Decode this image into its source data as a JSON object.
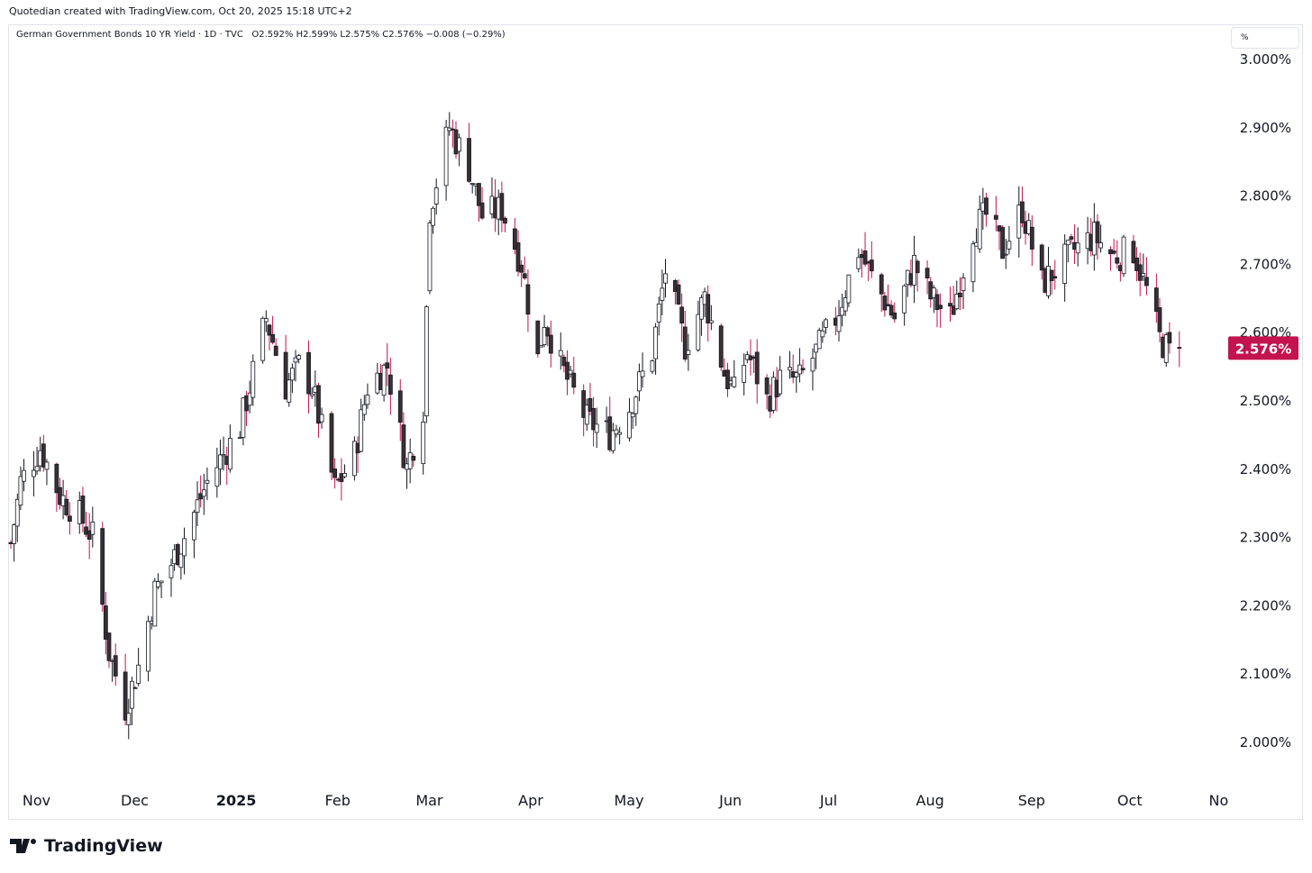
{
  "credit": "Quotedian created with TradingView.com, Oct 20, 2025 15:18 UTC+2",
  "legend": {
    "symbol": "German Government Bonds 10 YR Yield · 1D · TVC",
    "ohlc": "O2.592%  H2.599%  L2.575%  C2.576%  −0.008 (−0.29%)"
  },
  "unit_label": "%",
  "price_tag": "2.576%",
  "brand": "TradingView",
  "colors": {
    "up": "#131722",
    "up_body": "#ffffff",
    "down_body": "#3a2f33",
    "down_wick": "#c3144f",
    "tag": "#c3144f"
  },
  "chart_data": {
    "type": "candlestick",
    "title": "German Government Bonds 10 YR Yield",
    "ylabel": "%",
    "ylim": [
      1.98,
      3.01
    ],
    "y_ticks": [
      "2.000%",
      "2.100%",
      "2.200%",
      "2.300%",
      "2.400%",
      "2.500%",
      "2.600%",
      "2.700%",
      "2.800%",
      "2.900%",
      "3.000%"
    ],
    "y_tick_values": [
      2.0,
      2.1,
      2.2,
      2.3,
      2.4,
      2.5,
      2.6,
      2.7,
      2.8,
      2.9,
      3.0
    ],
    "x_ticks": [
      {
        "label": "Nov",
        "date": "2024-11-01"
      },
      {
        "label": "Dec",
        "date": "2024-12-01"
      },
      {
        "label": "2025",
        "date": "2025-01-01",
        "bold": true
      },
      {
        "label": "Feb",
        "date": "2025-02-01"
      },
      {
        "label": "Mar",
        "date": "2025-03-01"
      },
      {
        "label": "Apr",
        "date": "2025-04-01"
      },
      {
        "label": "May",
        "date": "2025-05-01"
      },
      {
        "label": "Jun",
        "date": "2025-06-01"
      },
      {
        "label": "Jul",
        "date": "2025-07-01"
      },
      {
        "label": "Aug",
        "date": "2025-08-01"
      },
      {
        "label": "Sep",
        "date": "2025-09-01"
      },
      {
        "label": "Oct",
        "date": "2025-10-01"
      },
      {
        "label": "No",
        "date": "2025-11-01"
      }
    ],
    "x_range": [
      "2024-10-28",
      "2025-11-02"
    ],
    "last_value": 2.576,
    "close_series": [
      {
        "date": "2024-10-28",
        "close": 2.29
      },
      {
        "date": "2024-10-31",
        "close": 2.38
      },
      {
        "date": "2024-11-06",
        "close": 2.43
      },
      {
        "date": "2024-11-12",
        "close": 2.36
      },
      {
        "date": "2024-11-18",
        "close": 2.33
      },
      {
        "date": "2024-11-22",
        "close": 2.3
      },
      {
        "date": "2024-11-27",
        "close": 2.13
      },
      {
        "date": "2024-12-02",
        "close": 2.05
      },
      {
        "date": "2024-12-06",
        "close": 2.11
      },
      {
        "date": "2024-12-11",
        "close": 2.22
      },
      {
        "date": "2024-12-16",
        "close": 2.26
      },
      {
        "date": "2024-12-20",
        "close": 2.3
      },
      {
        "date": "2024-12-27",
        "close": 2.38
      },
      {
        "date": "2025-01-06",
        "close": 2.46
      },
      {
        "date": "2025-01-14",
        "close": 2.62
      },
      {
        "date": "2025-01-20",
        "close": 2.52
      },
      {
        "date": "2025-01-24",
        "close": 2.55
      },
      {
        "date": "2025-01-28",
        "close": 2.52
      },
      {
        "date": "2025-02-04",
        "close": 2.37
      },
      {
        "date": "2025-02-10",
        "close": 2.42
      },
      {
        "date": "2025-02-14",
        "close": 2.52
      },
      {
        "date": "2025-02-20",
        "close": 2.55
      },
      {
        "date": "2025-02-26",
        "close": 2.4
      },
      {
        "date": "2025-03-03",
        "close": 2.49
      },
      {
        "date": "2025-03-05",
        "close": 2.78
      },
      {
        "date": "2025-03-11",
        "close": 2.9
      },
      {
        "date": "2025-03-17",
        "close": 2.84
      },
      {
        "date": "2025-03-21",
        "close": 2.77
      },
      {
        "date": "2025-03-27",
        "close": 2.78
      },
      {
        "date": "2025-04-02",
        "close": 2.7
      },
      {
        "date": "2025-04-07",
        "close": 2.56
      },
      {
        "date": "2025-04-09",
        "close": 2.62
      },
      {
        "date": "2025-04-14",
        "close": 2.55
      },
      {
        "date": "2025-04-22",
        "close": 2.47
      },
      {
        "date": "2025-04-29",
        "close": 2.45
      },
      {
        "date": "2025-05-05",
        "close": 2.49
      },
      {
        "date": "2025-05-12",
        "close": 2.57
      },
      {
        "date": "2025-05-16",
        "close": 2.69
      },
      {
        "date": "2025-05-22",
        "close": 2.58
      },
      {
        "date": "2025-05-28",
        "close": 2.65
      },
      {
        "date": "2025-06-03",
        "close": 2.54
      },
      {
        "date": "2025-06-06",
        "close": 2.51
      },
      {
        "date": "2025-06-10",
        "close": 2.57
      },
      {
        "date": "2025-06-16",
        "close": 2.5
      },
      {
        "date": "2025-06-20",
        "close": 2.53
      },
      {
        "date": "2025-06-26",
        "close": 2.53
      },
      {
        "date": "2025-07-01",
        "close": 2.57
      },
      {
        "date": "2025-07-07",
        "close": 2.62
      },
      {
        "date": "2025-07-14",
        "close": 2.72
      },
      {
        "date": "2025-07-18",
        "close": 2.68
      },
      {
        "date": "2025-07-25",
        "close": 2.62
      },
      {
        "date": "2025-07-31",
        "close": 2.7
      },
      {
        "date": "2025-08-05",
        "close": 2.65
      },
      {
        "date": "2025-08-11",
        "close": 2.62
      },
      {
        "date": "2025-08-18",
        "close": 2.75
      },
      {
        "date": "2025-08-22",
        "close": 2.77
      },
      {
        "date": "2025-08-27",
        "close": 2.72
      },
      {
        "date": "2025-09-02",
        "close": 2.78
      },
      {
        "date": "2025-09-08",
        "close": 2.67
      },
      {
        "date": "2025-09-12",
        "close": 2.69
      },
      {
        "date": "2025-09-18",
        "close": 2.72
      },
      {
        "date": "2025-09-24",
        "close": 2.74
      },
      {
        "date": "2025-09-30",
        "close": 2.71
      },
      {
        "date": "2025-10-06",
        "close": 2.72
      },
      {
        "date": "2025-10-10",
        "close": 2.66
      },
      {
        "date": "2025-10-14",
        "close": 2.59
      },
      {
        "date": "2025-10-17",
        "close": 2.57
      },
      {
        "date": "2025-10-20",
        "close": 2.576
      }
    ]
  }
}
